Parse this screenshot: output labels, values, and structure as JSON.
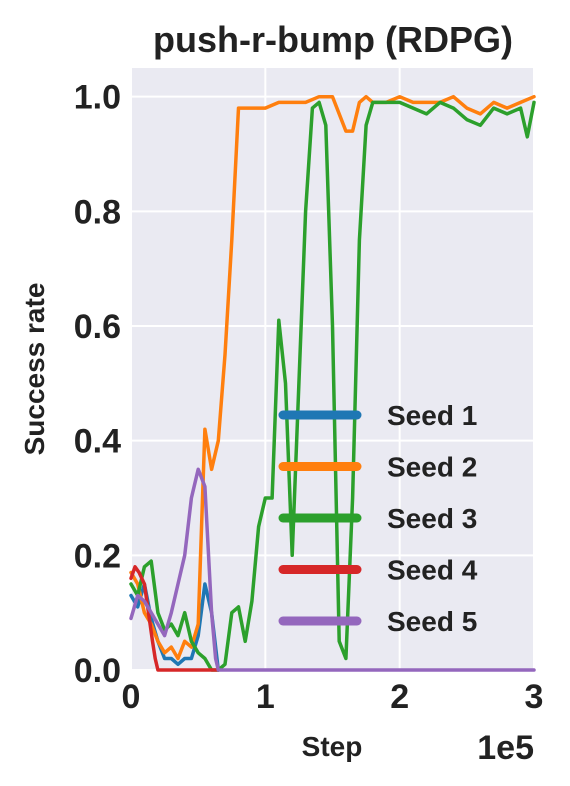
{
  "chart_data": {
    "type": "line",
    "title": "push-r-bump (RDPG)",
    "xlabel": "Step",
    "ylabel": "Success rate",
    "x_scale_label": "1e5",
    "xlim": [
      0,
      3
    ],
    "ylim": [
      0,
      1.05
    ],
    "x_ticks": [
      "0",
      "1",
      "2",
      "3"
    ],
    "y_ticks": [
      "0.0",
      "0.2",
      "0.4",
      "0.6",
      "0.8",
      "1.0"
    ],
    "grid": true,
    "legend_position": "lower-right",
    "series": [
      {
        "name": "Seed 1",
        "color": "#1f77b4",
        "x": [
          0,
          0.05,
          0.1,
          0.15,
          0.2,
          0.25,
          0.3,
          0.35,
          0.4,
          0.45,
          0.5,
          0.55,
          0.6,
          0.65
        ],
        "y": [
          0.13,
          0.11,
          0.15,
          0.09,
          0.05,
          0.02,
          0.02,
          0.01,
          0.02,
          0.02,
          0.06,
          0.15,
          0.1,
          0.0
        ]
      },
      {
        "name": "Seed 2",
        "color": "#ff7f0e",
        "x": [
          0,
          0.05,
          0.1,
          0.15,
          0.2,
          0.25,
          0.3,
          0.35,
          0.4,
          0.45,
          0.5,
          0.55,
          0.6,
          0.65,
          0.7,
          0.75,
          0.8,
          0.85,
          0.9,
          1.0,
          1.1,
          1.2,
          1.3,
          1.4,
          1.5,
          1.6,
          1.65,
          1.7,
          1.75,
          1.8,
          1.9,
          2.0,
          2.1,
          2.2,
          2.3,
          2.4,
          2.5,
          2.6,
          2.7,
          2.8,
          2.9,
          3.0
        ],
        "y": [
          0.17,
          0.15,
          0.1,
          0.08,
          0.05,
          0.03,
          0.04,
          0.02,
          0.05,
          0.04,
          0.08,
          0.42,
          0.35,
          0.4,
          0.55,
          0.75,
          0.98,
          0.98,
          0.98,
          0.98,
          0.99,
          0.99,
          0.99,
          1.0,
          1.0,
          0.94,
          0.94,
          0.99,
          1.0,
          0.99,
          0.99,
          1.0,
          0.99,
          0.99,
          0.99,
          1.0,
          0.98,
          0.97,
          0.99,
          0.98,
          0.99,
          1.0
        ]
      },
      {
        "name": "Seed 3",
        "color": "#2ca02c",
        "x": [
          0,
          0.05,
          0.1,
          0.15,
          0.2,
          0.25,
          0.3,
          0.35,
          0.4,
          0.45,
          0.5,
          0.55,
          0.6,
          0.65,
          0.7,
          0.75,
          0.8,
          0.85,
          0.9,
          0.95,
          1.0,
          1.05,
          1.1,
          1.15,
          1.2,
          1.25,
          1.3,
          1.35,
          1.4,
          1.45,
          1.5,
          1.55,
          1.6,
          1.65,
          1.7,
          1.75,
          1.8,
          1.9,
          2.0,
          2.1,
          2.2,
          2.3,
          2.4,
          2.5,
          2.6,
          2.7,
          2.8,
          2.9,
          2.95,
          3.0
        ],
        "y": [
          0.15,
          0.13,
          0.18,
          0.19,
          0.1,
          0.07,
          0.08,
          0.06,
          0.1,
          0.05,
          0.03,
          0.02,
          0.0,
          0.0,
          0.01,
          0.1,
          0.11,
          0.05,
          0.12,
          0.25,
          0.3,
          0.3,
          0.61,
          0.5,
          0.2,
          0.5,
          0.8,
          0.98,
          0.99,
          0.95,
          0.6,
          0.05,
          0.02,
          0.3,
          0.75,
          0.95,
          0.99,
          0.99,
          0.99,
          0.98,
          0.97,
          0.99,
          0.98,
          0.96,
          0.95,
          0.98,
          0.97,
          0.98,
          0.93,
          0.99
        ]
      },
      {
        "name": "Seed 4",
        "color": "#d62728",
        "x": [
          0,
          0.03,
          0.06,
          0.1,
          0.13,
          0.16,
          0.18,
          0.2,
          0.25,
          0.5,
          0.65
        ],
        "y": [
          0.16,
          0.18,
          0.17,
          0.15,
          0.1,
          0.05,
          0.02,
          0.0,
          0.0,
          0.0,
          0.0
        ]
      },
      {
        "name": "Seed 5",
        "color": "#9467bd",
        "x": [
          0,
          0.05,
          0.1,
          0.15,
          0.2,
          0.25,
          0.3,
          0.35,
          0.4,
          0.45,
          0.5,
          0.55,
          0.6,
          0.63,
          0.65,
          0.7,
          0.8,
          1.0,
          1.5,
          2.0,
          2.5,
          3.0
        ],
        "y": [
          0.09,
          0.13,
          0.12,
          0.1,
          0.08,
          0.06,
          0.1,
          0.15,
          0.2,
          0.3,
          0.35,
          0.32,
          0.1,
          0.02,
          0.0,
          0.0,
          0.0,
          0.0,
          0.0,
          0.0,
          0.0,
          0.0
        ]
      }
    ]
  }
}
